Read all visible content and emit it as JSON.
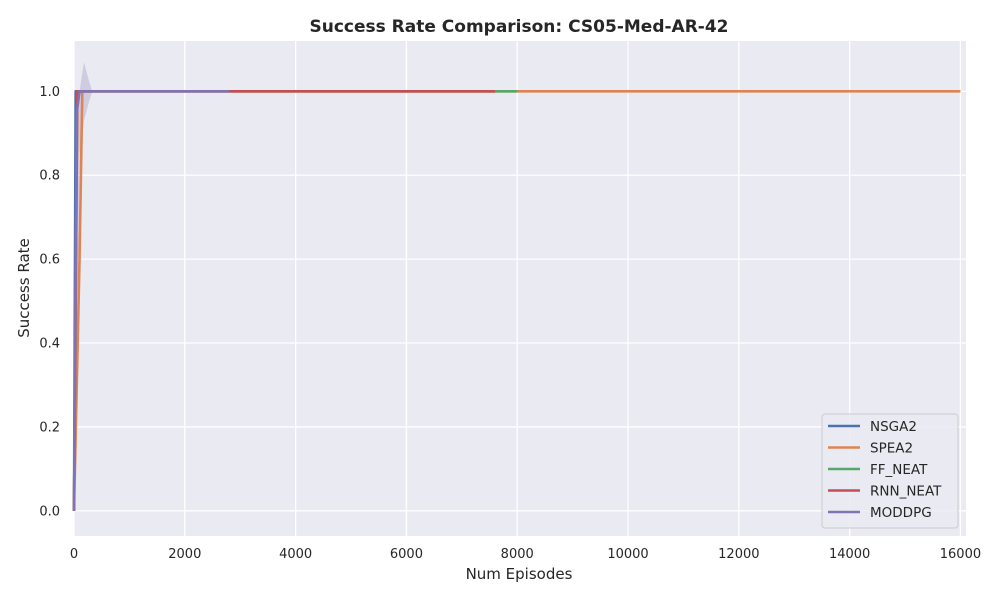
{
  "chart_data": {
    "type": "line",
    "title": "Success Rate Comparison: CS05-Med-AR-42",
    "xlabel": "Num Episodes",
    "ylabel": "Success Rate",
    "xlim": [
      0,
      16100
    ],
    "ylim": [
      -0.06,
      1.12
    ],
    "xticks": [
      0,
      2000,
      4000,
      6000,
      8000,
      10000,
      12000,
      14000,
      16000
    ],
    "xtick_labels": [
      "0",
      "2000",
      "4000",
      "6000",
      "8000",
      "10000",
      "12000",
      "14000",
      "16000"
    ],
    "yticks": [
      0.0,
      0.2,
      0.4,
      0.6,
      0.8,
      1.0
    ],
    "ytick_labels": [
      "0.0",
      "0.2",
      "0.4",
      "0.6",
      "0.8",
      "1.0"
    ],
    "grid": true,
    "legend_position": "bottom-right",
    "background": "#eaeaf2",
    "series": [
      {
        "name": "NSGA2",
        "color": "#4c72b0",
        "points": [
          [
            0,
            0.0
          ],
          [
            30,
            1.0
          ],
          [
            200,
            1.0
          ],
          [
            300,
            1.0
          ]
        ]
      },
      {
        "name": "SPEA2",
        "color": "#dd8452",
        "points": [
          [
            0,
            0.0
          ],
          [
            100,
            0.6
          ],
          [
            150,
            1.0
          ],
          [
            200,
            1.0
          ],
          [
            2000,
            1.0
          ],
          [
            8000,
            1.0
          ],
          [
            12000,
            1.0
          ],
          [
            16000,
            1.0
          ]
        ]
      },
      {
        "name": "FF_NEAT",
        "color": "#55a868",
        "points": [
          [
            0,
            0.0
          ],
          [
            60,
            1.0
          ],
          [
            2000,
            1.0
          ],
          [
            8000,
            1.0
          ]
        ]
      },
      {
        "name": "RNN_NEAT",
        "color": "#c44e52",
        "points": [
          [
            0,
            0.0
          ],
          [
            60,
            1.0
          ],
          [
            2000,
            1.0
          ],
          [
            7600,
            1.0
          ]
        ]
      },
      {
        "name": "MODDPG",
        "color": "#8172b3",
        "points": [
          [
            0,
            0.0
          ],
          [
            50,
            0.95
          ],
          [
            100,
            1.0
          ],
          [
            200,
            1.0
          ],
          [
            2800,
            1.0
          ]
        ],
        "band": {
          "x": [
            0,
            50,
            100,
            180,
            260,
            330
          ],
          "lower": [
            0.0,
            0.3,
            0.85,
            0.93,
            0.97,
            1.0
          ],
          "upper": [
            0.0,
            1.0,
            1.0,
            1.07,
            1.03,
            1.0
          ]
        }
      }
    ]
  }
}
